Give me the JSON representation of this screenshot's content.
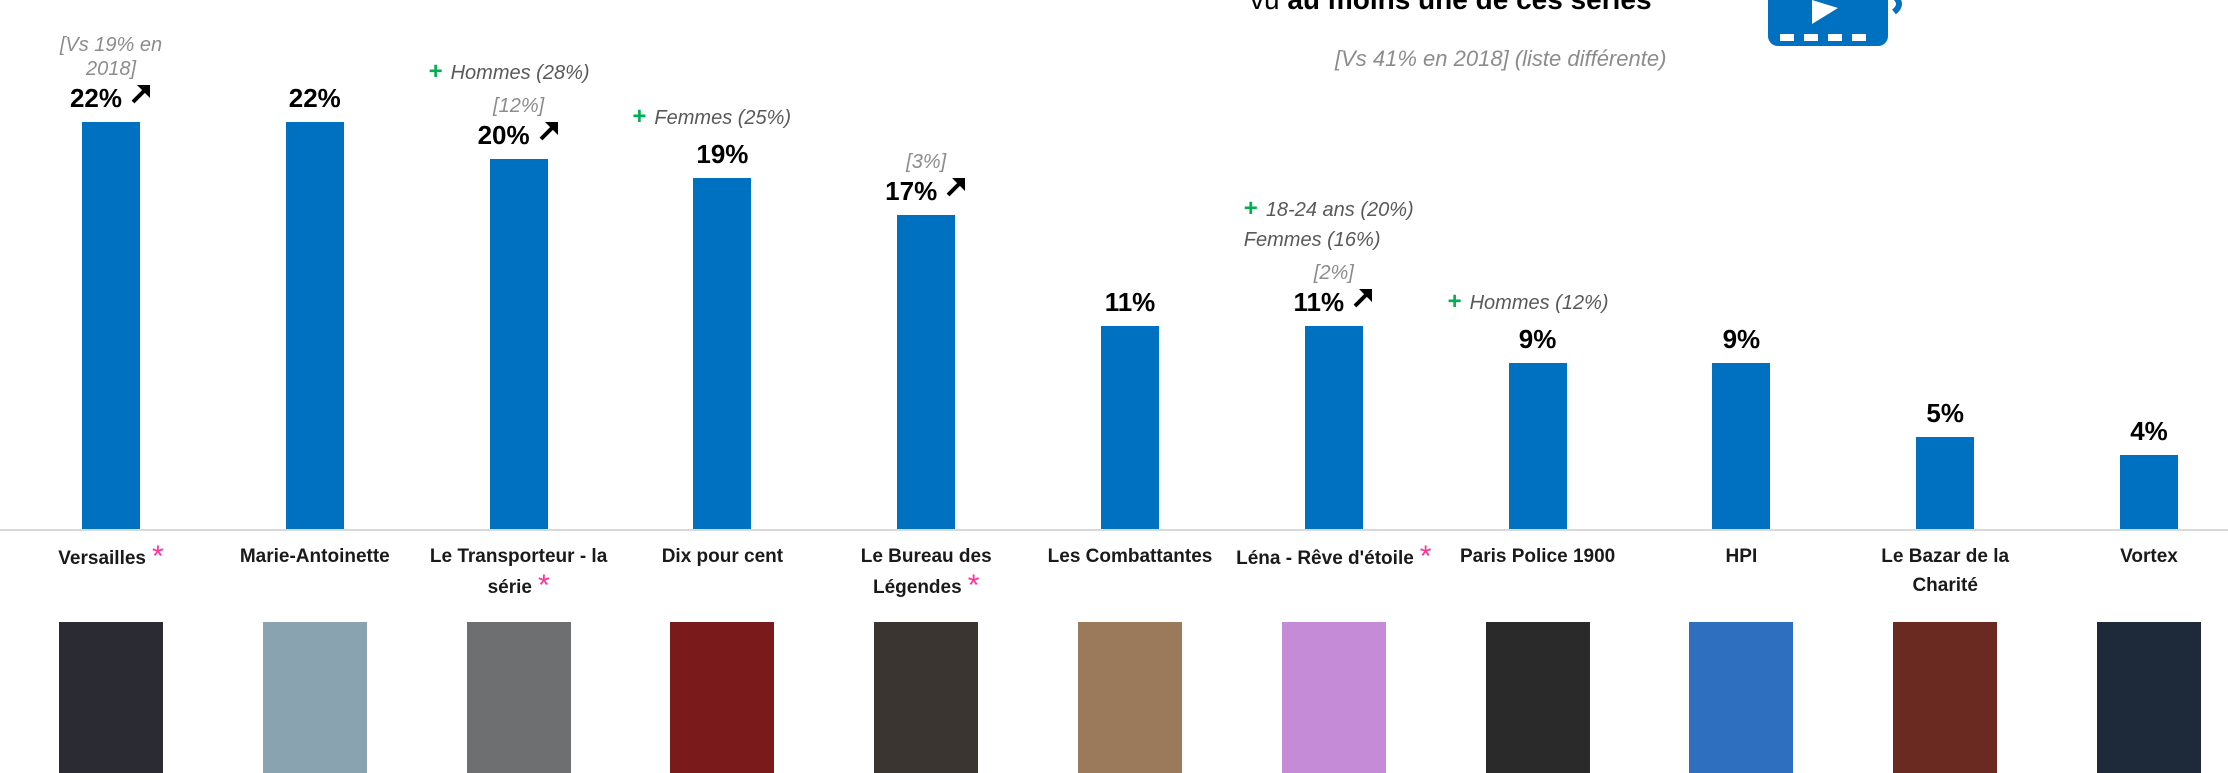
{
  "chart_data": {
    "type": "bar",
    "title": {
      "prefix": "vu",
      "emphasis": "au moins une de ces séries"
    },
    "subtitle": "[Vs 41% en 2018] (liste différente)",
    "categories": [
      "Versailles",
      "Marie-Antoinette",
      "Le Transporteur - la série",
      "Dix pour cent",
      "Le Bureau des Légendes",
      "Les Combattantes",
      "Léna - Rêve d'étoile",
      "Paris Police 1900",
      "HPI",
      "Le Bazar de la Charité",
      "Vortex"
    ],
    "values": [
      22,
      22,
      20,
      19,
      17,
      11,
      11,
      9,
      9,
      5,
      4
    ],
    "value_labels": [
      "22%",
      "22%",
      "20%",
      "19%",
      "17%",
      "11%",
      "11%",
      "9%",
      "9%",
      "5%",
      "4%"
    ],
    "color": "#0070c0",
    "ylim": [
      0,
      22
    ],
    "previous": [
      "[Vs 19% en 2018]",
      null,
      "[12%]",
      null,
      "[3%]",
      null,
      "[2%]",
      null,
      null,
      null,
      null
    ],
    "highlight_marker": "+",
    "highlights": [
      null,
      null,
      [
        "Hommes (28%)"
      ],
      [
        "Femmes (25%)"
      ],
      null,
      null,
      [
        "18-24 ans (20%)",
        "Femmes (16%)"
      ],
      [
        "Hommes (12%)"
      ],
      null,
      null,
      null
    ],
    "flags": [
      "*",
      null,
      "*",
      null,
      "*",
      null,
      "*",
      null,
      null,
      null,
      null
    ]
  }
}
